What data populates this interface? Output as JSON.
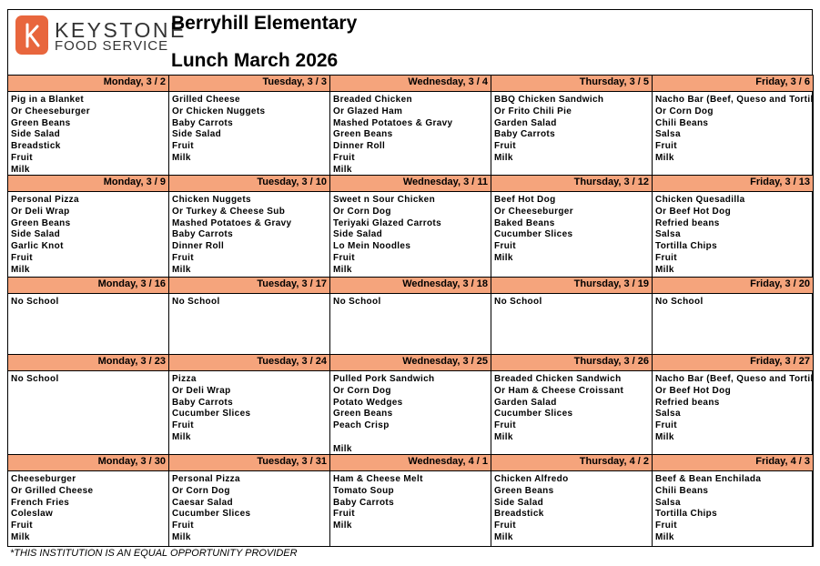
{
  "logo": {
    "name": "KEYSTONE",
    "subtitle": "FOOD SERVICE"
  },
  "header": {
    "school": "Berryhill Elementary",
    "title": "Lunch March 2026"
  },
  "weeks": [
    {
      "days": [
        {
          "header": "Monday, 3 / 2",
          "items": [
            "Pig in a Blanket",
            "Or Cheeseburger",
            "Green Beans",
            "Side Salad",
            "Breadstick",
            "Fruit",
            "Milk"
          ]
        },
        {
          "header": "Tuesday, 3 / 3",
          "items": [
            "Grilled Cheese",
            "Or Chicken Nuggets",
            "Baby Carrots",
            "Side Salad",
            "Fruit",
            "Milk"
          ]
        },
        {
          "header": "Wednesday, 3 / 4",
          "items": [
            "Breaded Chicken",
            "Or Glazed Ham",
            "Mashed Potatoes & Gravy",
            "Green Beans",
            "Dinner Roll",
            "Fruit",
            "Milk"
          ]
        },
        {
          "header": "Thursday, 3 / 5",
          "items": [
            "BBQ Chicken Sandwich",
            "Or Frito Chili Pie",
            "Garden Salad",
            "Baby Carrots",
            "Fruit",
            "Milk"
          ]
        },
        {
          "header": "Friday, 3 / 6",
          "items": [
            "Nacho Bar (Beef, Queso and Tortill",
            "Or Corn Dog",
            "Chili Beans",
            "Salsa",
            "Fruit",
            "Milk"
          ]
        }
      ]
    },
    {
      "days": [
        {
          "header": "Monday, 3 / 9",
          "items": [
            "Personal Pizza",
            "Or Deli Wrap",
            "Green Beans",
            "Side Salad",
            "Garlic Knot",
            "Fruit",
            "Milk"
          ]
        },
        {
          "header": "Tuesday, 3 / 10",
          "items": [
            "Chicken Nuggets",
            "Or Turkey & Cheese Sub",
            "Mashed Potatoes & Gravy",
            "Baby Carrots",
            "Dinner Roll",
            "Fruit",
            "Milk"
          ]
        },
        {
          "header": "Wednesday, 3 / 11",
          "items": [
            "Sweet n Sour Chicken",
            "Or Corn Dog",
            "Teriyaki Glazed Carrots",
            "Side Salad",
            "Lo Mein Noodles",
            "Fruit",
            "Milk"
          ]
        },
        {
          "header": "Thursday, 3 / 12",
          "items": [
            "Beef Hot Dog",
            "Or Cheeseburger",
            "Baked Beans",
            "Cucumber Slices",
            "Fruit",
            "Milk"
          ]
        },
        {
          "header": "Friday, 3 / 13",
          "items": [
            "Chicken Quesadilla",
            "Or Beef Hot Dog",
            "Refried beans",
            "Salsa",
            "Tortilla Chips",
            "Fruit",
            "Milk"
          ]
        }
      ]
    },
    {
      "days": [
        {
          "header": "Monday, 3 / 16",
          "items": [
            "No School"
          ]
        },
        {
          "header": "Tuesday, 3 / 17",
          "items": [
            "No School"
          ]
        },
        {
          "header": "Wednesday, 3 / 18",
          "items": [
            "No School"
          ]
        },
        {
          "header": "Thursday, 3 / 19",
          "items": [
            "No School"
          ]
        },
        {
          "header": "Friday, 3 / 20",
          "items": [
            "No School"
          ]
        }
      ]
    },
    {
      "days": [
        {
          "header": "Monday, 3 / 23",
          "items": [
            "No School"
          ]
        },
        {
          "header": "Tuesday, 3 / 24",
          "items": [
            "Pizza",
            "Or Deli Wrap",
            "Baby Carrots",
            "Cucumber Slices",
            "Fruit",
            "Milk"
          ]
        },
        {
          "header": "Wednesday, 3 / 25",
          "items": [
            "Pulled Pork Sandwich",
            "Or Corn Dog",
            "Potato Wedges",
            "Green Beans",
            "Peach Crisp",
            "Milk"
          ]
        },
        {
          "header": "Thursday, 3 / 26",
          "items": [
            "Breaded Chicken Sandwich",
            "Or Ham & Cheese Croissant",
            "Garden Salad",
            "Cucumber Slices",
            "Fruit",
            "Milk"
          ]
        },
        {
          "header": "Friday, 3 / 27",
          "items": [
            "Nacho Bar (Beef, Queso and Tortill",
            "Or Beef Hot Dog",
            "Refried beans",
            "Salsa",
            "Fruit",
            "Milk"
          ]
        }
      ]
    },
    {
      "days": [
        {
          "header": "Monday, 3 / 30",
          "items": [
            "Cheeseburger",
            "Or Grilled Cheese",
            "French Fries",
            "Coleslaw",
            "Fruit",
            "Milk"
          ]
        },
        {
          "header": "Tuesday, 3 / 31",
          "items": [
            "Personal Pizza",
            "Or Corn Dog",
            "Caesar Salad",
            "Cucumber Slices",
            "Fruit",
            "Milk"
          ]
        },
        {
          "header": "Wednesday, 4 / 1",
          "items": [
            "Ham & Cheese Melt",
            "Tomato Soup",
            "Baby Carrots",
            "Fruit",
            "Milk"
          ]
        },
        {
          "header": "Thursday, 4 / 2",
          "items": [
            "Chicken Alfredo",
            "Green Beans",
            "Side Salad",
            "Breadstick",
            "Fruit",
            "Milk"
          ]
        },
        {
          "header": "Friday, 4 / 3",
          "items": [
            "Beef & Bean Enchilada",
            "Chili Beans",
            "Salsa",
            "Tortilla Chips",
            "Fruit",
            "Milk"
          ]
        }
      ]
    }
  ],
  "footer": "*THIS INSTITUTION IS AN EQUAL OPPORTUNITY PROVIDER"
}
